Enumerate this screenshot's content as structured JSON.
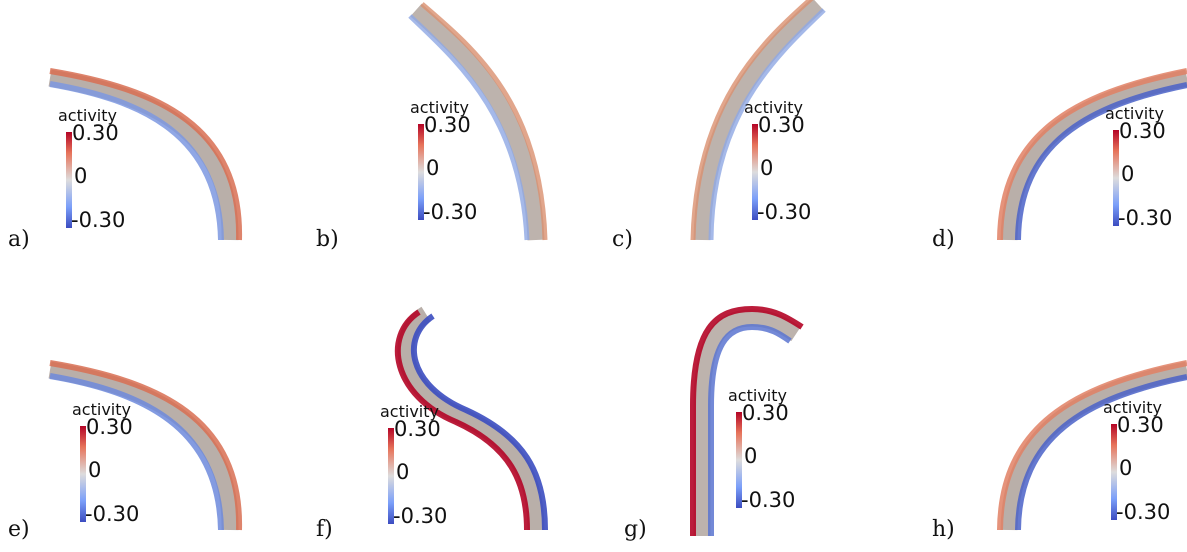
{
  "colorbar": {
    "title": "activity",
    "max_label": "0.30",
    "mid_label": "0",
    "min_label": "-0.30",
    "colors": {
      "high": "#b40426",
      "neutral": "#dddcdc",
      "low": "#3b4cc0"
    }
  },
  "panels": [
    {
      "label": "a)",
      "intensity": 0.35
    },
    {
      "label": "b)",
      "intensity": 0.25
    },
    {
      "label": "c)",
      "intensity": 0.25
    },
    {
      "label": "d)",
      "intensity": 0.4
    },
    {
      "label": "e)",
      "intensity": 0.35
    },
    {
      "label": "f)",
      "intensity": 0.7
    },
    {
      "label": "g)",
      "intensity": 0.7
    },
    {
      "label": "h)",
      "intensity": 0.4
    }
  ]
}
